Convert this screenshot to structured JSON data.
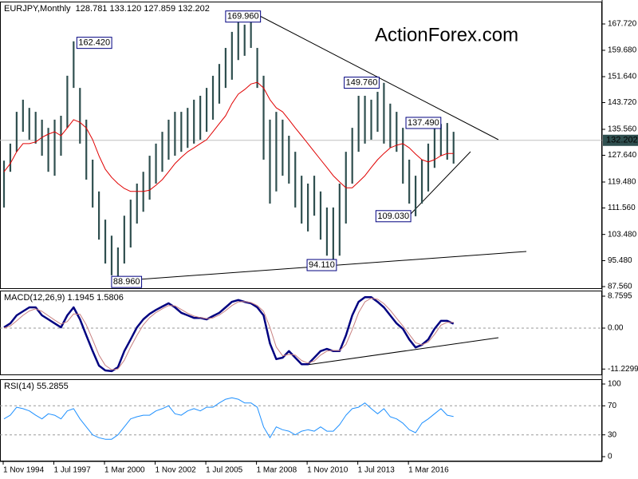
{
  "chart_data": [
    {
      "type": "ohlc",
      "title": "EURJPY,Monthly  128.781 133.120 127.859 132.202",
      "watermark": "ActionForex.com",
      "categories": [
        "1 Nov 1994",
        null,
        null,
        null,
        null,
        null,
        null,
        null,
        "1 Jul 1997",
        null,
        null,
        null,
        null,
        null,
        null,
        null,
        "1 Mar 2000",
        null,
        null,
        null,
        null,
        null,
        null,
        null,
        "1 Nov 2002",
        null,
        null,
        null,
        null,
        null,
        null,
        null,
        "1 Jul 2005",
        null,
        null,
        null,
        null,
        null,
        null,
        null,
        "1 Mar 2008",
        null,
        null,
        null,
        null,
        null,
        null,
        null,
        "1 Nov 2010",
        null,
        null,
        null,
        null,
        null,
        null,
        null,
        "1 Jul 2013",
        null,
        null,
        null,
        null,
        null,
        null,
        null,
        "1 Mar 2016",
        null,
        null,
        null,
        null,
        null,
        null,
        null
      ],
      "bars": {
        "color": "#2f4f4f",
        "high": [
          126,
          131.2,
          140.9,
          144.6,
          142.1,
          140.9,
          138.5,
          136.0,
          138.5,
          139.7,
          151.9,
          162.42,
          148.2,
          138.5,
          126.3,
          116.6,
          108.0,
          103.1,
          99.5,
          109.2,
          114.1,
          119.0,
          122.6,
          127.5,
          131.2,
          134.8,
          138.5,
          140.9,
          140.9,
          142.1,
          144.6,
          145.8,
          148.2,
          151.9,
          155.5,
          160.4,
          165.3,
          168.9,
          167.5,
          169.96,
          160.4,
          151.9,
          138.5,
          140.9,
          138.5,
          133.6,
          128.7,
          121.4,
          119.0,
          121.4,
          116.6,
          111.7,
          111.7,
          119.0,
          128.7,
          136.0,
          145.8,
          145.8,
          144.6,
          147.0,
          149.76,
          143.4,
          140.9,
          136.0,
          126.3,
          121.4,
          126.3,
          131.2,
          136.0,
          137.2,
          137.49,
          134.8
        ],
        "low": [
          111.7,
          122.6,
          128.7,
          134.8,
          132.4,
          131.2,
          127.5,
          122.6,
          121.4,
          127.5,
          136.0,
          148.2,
          131.2,
          120.2,
          111.7,
          101.9,
          94.6,
          91.0,
          88.96,
          94.6,
          99.5,
          106.8,
          110.4,
          114.1,
          119.0,
          122.6,
          126.3,
          127.5,
          128.7,
          129.9,
          131.2,
          132.4,
          134.8,
          138.5,
          143.4,
          148.2,
          150.7,
          156.7,
          158.0,
          160.4,
          148.2,
          126.3,
          112.9,
          116.6,
          121.4,
          119.0,
          111.7,
          106.8,
          104.4,
          109.2,
          101.9,
          97.0,
          94.11,
          97.0,
          106.8,
          119.0,
          128.7,
          131.2,
          132.4,
          134.8,
          131.2,
          130.0,
          128.7,
          119.0,
          112.9,
          109.03,
          112.9,
          116.6,
          123.8,
          127.5,
          126.3,
          125.1
        ]
      },
      "lines": [
        {
          "color": "#e00000",
          "width": 1,
          "values": [
            122.6,
            125.1,
            128.7,
            131.2,
            131.2,
            131.7,
            133.1,
            134.1,
            134.8,
            133.6,
            136.0,
            138.5,
            137.7,
            136.0,
            132.4,
            127.5,
            123.4,
            120.9,
            119.0,
            117.5,
            116.6,
            116.6,
            116.6,
            117.0,
            118.5,
            120.2,
            122.6,
            125.1,
            127.0,
            128.7,
            129.9,
            131.2,
            132.4,
            134.8,
            137.3,
            139.7,
            143.4,
            146.3,
            147.7,
            149.4,
            149.9,
            148.2,
            144.6,
            142.1,
            140.9,
            138.5,
            136.0,
            133.6,
            131.2,
            128.7,
            126.3,
            123.9,
            121.4,
            119.5,
            117.7,
            117.7,
            119.5,
            121.4,
            123.9,
            126.3,
            128.2,
            129.9,
            130.7,
            131.2,
            129.9,
            128.0,
            126.3,
            125.6,
            126.3,
            127.5,
            128.2,
            128.2
          ]
        }
      ],
      "last": 132.202,
      "annotations": [
        {
          "value": 169.96,
          "label": "169.960"
        },
        {
          "value": 162.42,
          "label": "162.420"
        },
        {
          "value": 149.76,
          "label": "149.760"
        },
        {
          "value": 137.49,
          "label": "137.490"
        },
        {
          "value": 109.03,
          "label": "109.030"
        },
        {
          "value": 94.11,
          "label": "94.110"
        },
        {
          "value": 88.96,
          "label": "88.960"
        }
      ],
      "ylim": [
        86.83,
        174.54
      ],
      "yticks": [
        {
          "value": 167.72,
          "label": "167.720"
        },
        {
          "value": 159.68,
          "label": "159.680"
        },
        {
          "value": 151.64,
          "label": "151.640"
        },
        {
          "value": 143.72,
          "label": "143.720"
        },
        {
          "value": 135.56,
          "label": "135.560"
        },
        {
          "value": 127.64,
          "label": "127.640"
        },
        {
          "value": 119.48,
          "label": "119.480"
        },
        {
          "value": 111.56,
          "label": "111.560"
        },
        {
          "value": 103.48,
          "label": "103.480"
        },
        {
          "value": 95.48,
          "label": "95.480"
        },
        {
          "value": 87.56,
          "label": "87.560"
        }
      ]
    },
    {
      "type": "line",
      "title": "MACD(12,26,9) 1.1945 1.5806",
      "lines": [
        {
          "color": "#000080",
          "width": 2.5,
          "values": [
            0.2,
            1.3,
            3.5,
            4.6,
            5.7,
            5.7,
            3.5,
            2.4,
            1.3,
            0.2,
            3.5,
            5.7,
            2.4,
            -2.0,
            -6.3,
            -10.3,
            -11.6,
            -11.8,
            -10.7,
            -6.3,
            -3.1,
            0.2,
            2.4,
            3.9,
            5.0,
            5.9,
            6.8,
            5.7,
            4.2,
            3.5,
            2.8,
            2.8,
            2.4,
            3.3,
            4.2,
            5.7,
            7.2,
            7.7,
            7.2,
            6.8,
            5.7,
            3.5,
            -4.2,
            -8.5,
            -8.1,
            -6.3,
            -8.1,
            -9.9,
            -9.9,
            -8.1,
            -6.3,
            -5.7,
            -6.3,
            -6.3,
            -2.0,
            3.5,
            7.2,
            8.5,
            8.5,
            7.2,
            5.7,
            3.5,
            1.3,
            -0.2,
            -3.1,
            -5.3,
            -4.6,
            -3.1,
            -0.2,
            2.0,
            2.0,
            1.2
          ]
        },
        {
          "color": "#c88080",
          "width": 1,
          "values": [
            0.0,
            0.6,
            2.0,
            3.5,
            4.7,
            5.3,
            4.6,
            3.4,
            2.2,
            1.1,
            1.8,
            3.9,
            3.8,
            0.9,
            -3.2,
            -7.4,
            -10.2,
            -11.4,
            -11.2,
            -8.8,
            -5.2,
            -2.0,
            0.9,
            2.9,
            4.3,
            5.3,
            6.2,
            6.1,
            5.1,
            4.1,
            3.3,
            2.9,
            2.6,
            2.8,
            3.6,
            4.8,
            6.2,
            7.2,
            7.3,
            7.0,
            6.2,
            4.6,
            0.2,
            -5.2,
            -7.6,
            -7.2,
            -7.4,
            -8.9,
            -9.6,
            -9.0,
            -7.4,
            -6.3,
            -6.1,
            -6.2,
            -4.5,
            -0.4,
            4.2,
            7.2,
            8.2,
            7.9,
            6.7,
            4.9,
            2.7,
            0.6,
            -1.7,
            -4.0,
            -4.6,
            -3.8,
            -1.7,
            0.8,
            1.6,
            1.58
          ]
        }
      ],
      "levels": [
        0
      ],
      "ylim": [
        -12.92,
        10.29
      ],
      "yticks": [
        8.7595,
        {
          "value": 0,
          "label": "0.00"
        },
        -11.2299
      ]
    },
    {
      "type": "line",
      "title": "RSI(14) 55.2855",
      "lines": [
        {
          "color": "#1e90ff",
          "width": 1,
          "values": [
            52,
            57,
            68,
            66,
            63,
            57,
            52,
            59,
            57,
            52,
            63,
            66,
            52,
            41,
            30,
            26,
            24,
            24,
            30,
            41,
            52,
            55,
            57,
            57,
            63,
            66,
            70,
            59,
            57,
            63,
            66,
            63,
            68,
            68,
            74,
            79,
            81,
            79,
            74,
            74,
            68,
            41,
            26,
            41,
            37,
            35,
            30,
            35,
            37,
            35,
            41,
            35,
            35,
            44,
            57,
            66,
            68,
            74,
            66,
            59,
            66,
            55,
            52,
            46,
            37,
            33,
            46,
            52,
            59,
            66,
            57,
            55.3
          ]
        }
      ],
      "levels": [
        70,
        30
      ],
      "ylim": [
        -6.6,
        106.6
      ],
      "yticks": [
        100,
        70,
        30,
        0
      ]
    }
  ]
}
